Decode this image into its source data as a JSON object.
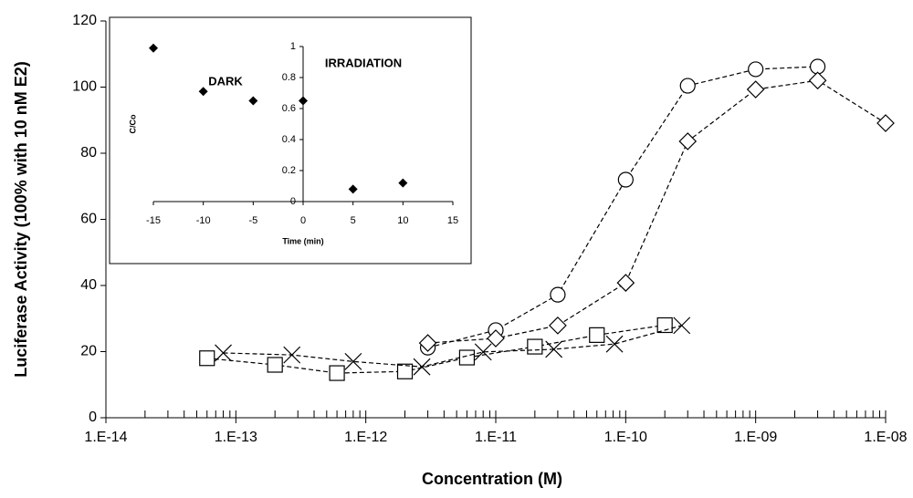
{
  "chart_data": [
    {
      "type": "line",
      "xlabel": "Concentration (M)",
      "ylabel": "Luciferase Activity (100% with 10 nM E2)",
      "xscale": "log",
      "xlim": [
        1e-14,
        1e-08
      ],
      "xticks": [
        {
          "value": 1e-14,
          "label": "1.E-14"
        },
        {
          "value": 1e-13,
          "label": "1.E-13"
        },
        {
          "value": 1e-12,
          "label": "1.E-12"
        },
        {
          "value": 1e-11,
          "label": "1.E-11"
        },
        {
          "value": 1e-10,
          "label": "1.E-10"
        },
        {
          "value": 1e-09,
          "label": "1.E-09"
        },
        {
          "value": 1e-08,
          "label": "1.E-08"
        }
      ],
      "ylim": [
        0,
        120
      ],
      "yticks": [
        0,
        20,
        40,
        60,
        80,
        100,
        120
      ],
      "grid": false,
      "series": [
        {
          "marker": "circle",
          "color": "#000000",
          "x": [
            3e-12,
            1e-11,
            3e-11,
            1e-10,
            3e-10,
            1e-09,
            3e-09
          ],
          "values": [
            21.2,
            26.5,
            37.2,
            72,
            100.4,
            105.4,
            106.2
          ]
        },
        {
          "marker": "diamond",
          "color": "#000000",
          "x": [
            3e-12,
            1e-11,
            3e-11,
            1e-10,
            3e-10,
            1e-09,
            3e-09,
            1e-08
          ],
          "values": [
            22.6,
            24,
            27.9,
            40.8,
            83.6,
            99.3,
            102,
            89.1
          ]
        },
        {
          "marker": "square",
          "color": "#000000",
          "x": [
            6e-14,
            2e-13,
            6e-13,
            2e-12,
            6e-12,
            2e-11,
            6e-11,
            2e-10
          ],
          "values": [
            18,
            16,
            13.5,
            14,
            18.2,
            21.5,
            25,
            28
          ]
        },
        {
          "marker": "cross",
          "color": "#000000",
          "x": [
            8e-14,
            2.7e-13,
            8e-13,
            2.7e-12,
            8e-12,
            2.8e-11,
            8.2e-11,
            2.7e-10
          ],
          "values": [
            19.6,
            19,
            17,
            15.4,
            19.9,
            20.7,
            22.3,
            27.9
          ]
        }
      ]
    },
    {
      "type": "scatter",
      "xlabel": "Time (min)",
      "ylabel": "C/Co",
      "annotations": [
        "DARK",
        "IRRADIATION"
      ],
      "xlim": [
        -15,
        15
      ],
      "xticks": [
        -15,
        -10,
        -5,
        0,
        5,
        10,
        15
      ],
      "ylim": [
        0,
        1
      ],
      "yticks": [
        0,
        0.2,
        0.4,
        0.6,
        0.8,
        1
      ],
      "marker": "diamond-filled",
      "color": "#000000",
      "x": [
        -15,
        -10,
        -5,
        0,
        5,
        10
      ],
      "values": [
        0.99,
        0.71,
        0.65,
        0.65,
        0.08,
        0.12
      ]
    }
  ]
}
